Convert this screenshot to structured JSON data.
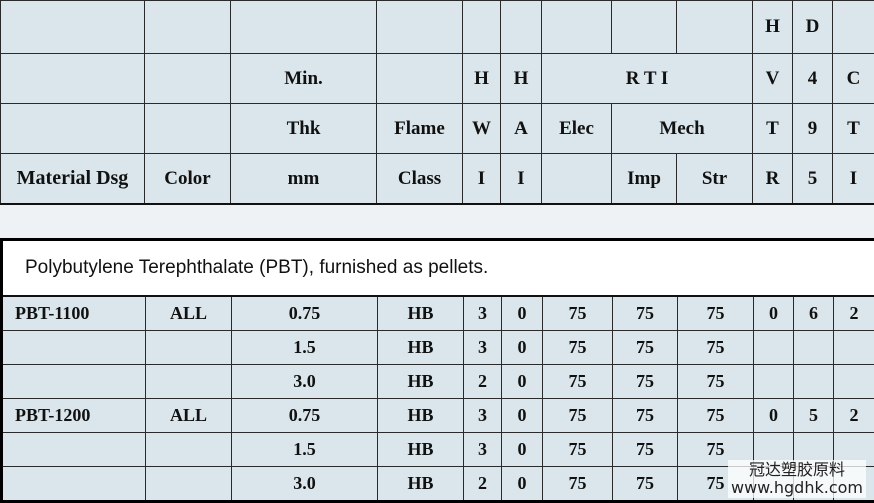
{
  "header": {
    "row1": {
      "hdtr_h": "H",
      "d495_d": "D"
    },
    "row2": {
      "min": "Min.",
      "hwi_h": "H",
      "hai_h": "H",
      "rti": "R T I",
      "hvtr_v": "V",
      "d495_4": "4",
      "cti_c": "C"
    },
    "row3": {
      "thk": "Thk",
      "flame": "Flame",
      "hwi_w": "W",
      "hai_a": "A",
      "elec": "Elec",
      "mech": "Mech",
      "hvtr_t": "T",
      "d495_9": "9",
      "cti_t": "T"
    },
    "row4": {
      "material": "Material Dsg",
      "color": "Color",
      "mm": "mm",
      "class": "Class",
      "hwi_i": "I",
      "hai_i": "I",
      "imp": "Imp",
      "str": "Str",
      "hvtr_r": "R",
      "d495_5": "5",
      "cti_i": "I"
    }
  },
  "section_title": "Polybutylene Terephthalate (PBT), furnished as pellets.",
  "rows": [
    {
      "material": "PBT-1100",
      "color": "ALL",
      "thk": "0.75",
      "flame": "HB",
      "hwi": "3",
      "hai": "0",
      "elec": "75",
      "imp": "75",
      "str": "75",
      "hvtr": "0",
      "d495": "6",
      "cti": "2"
    },
    {
      "material": "",
      "color": "",
      "thk": "1.5",
      "flame": "HB",
      "hwi": "3",
      "hai": "0",
      "elec": "75",
      "imp": "75",
      "str": "75",
      "hvtr": "",
      "d495": "",
      "cti": ""
    },
    {
      "material": "",
      "color": "",
      "thk": "3.0",
      "flame": "HB",
      "hwi": "2",
      "hai": "0",
      "elec": "75",
      "imp": "75",
      "str": "75",
      "hvtr": "",
      "d495": "",
      "cti": ""
    },
    {
      "material": "PBT-1200",
      "color": "ALL",
      "thk": "0.75",
      "flame": "HB",
      "hwi": "3",
      "hai": "0",
      "elec": "75",
      "imp": "75",
      "str": "75",
      "hvtr": "0",
      "d495": "5",
      "cti": "2"
    },
    {
      "material": "",
      "color": "",
      "thk": "1.5",
      "flame": "HB",
      "hwi": "3",
      "hai": "0",
      "elec": "75",
      "imp": "75",
      "str": "75",
      "hvtr": "",
      "d495": "",
      "cti": ""
    },
    {
      "material": "",
      "color": "",
      "thk": "3.0",
      "flame": "HB",
      "hwi": "2",
      "hai": "0",
      "elec": "75",
      "imp": "75",
      "str": "75",
      "hvtr": "",
      "d495": "",
      "cti": ""
    }
  ],
  "watermark": {
    "line1": "冠达塑胶原料",
    "line2": "www.hgdhk.com"
  }
}
